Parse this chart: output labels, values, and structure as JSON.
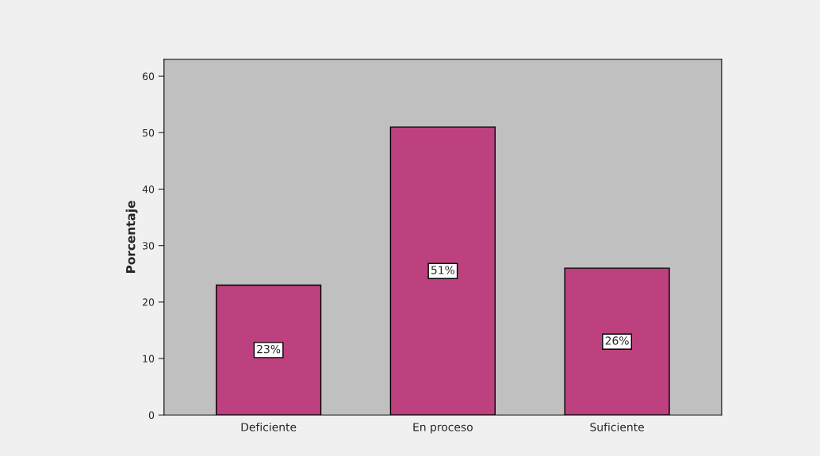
{
  "chart_data": {
    "type": "bar",
    "ylabel": "Porcentaje",
    "categories": [
      "Deficiente",
      "En proceso",
      "Suficiente"
    ],
    "values": [
      23,
      51,
      26
    ],
    "value_labels": [
      "23%",
      "51%",
      "26%"
    ],
    "color": "#bd407f",
    "ylim": [
      0,
      63
    ],
    "yticks": [
      0,
      10,
      20,
      30,
      40,
      50,
      60
    ],
    "grid": false
  }
}
